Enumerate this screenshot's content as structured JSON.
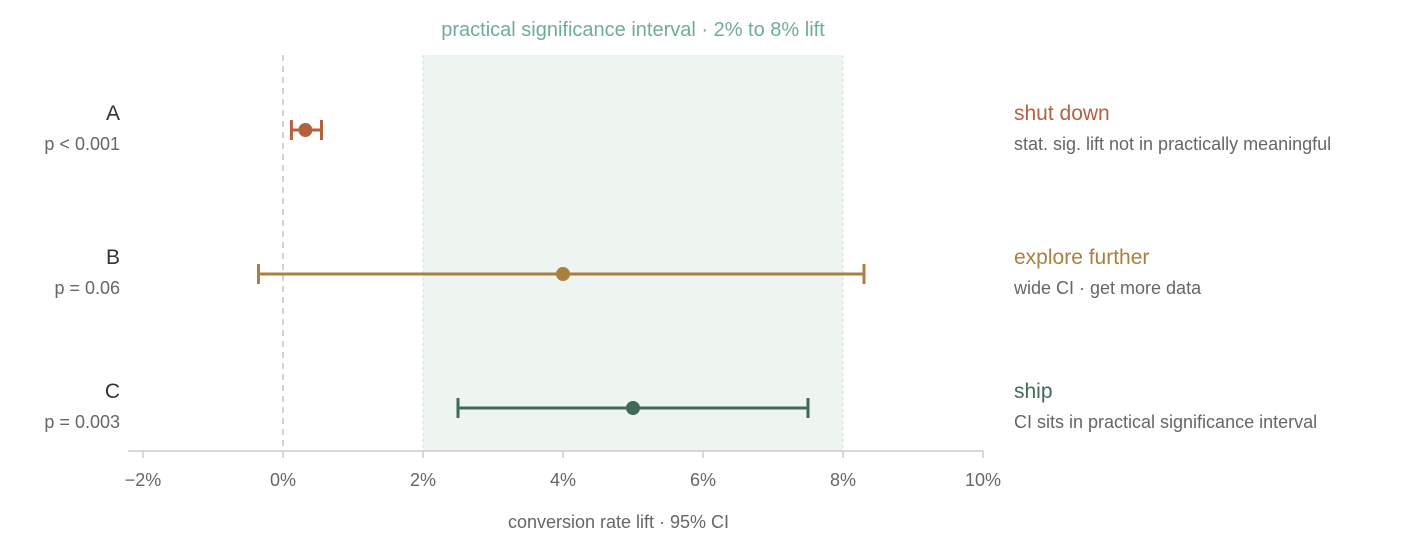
{
  "chart_data": {
    "type": "forest",
    "band_title": "practical significance interval · 2% to 8% lift",
    "band": [
      2,
      8
    ],
    "xlabel": "conversion rate lift · 95% CI",
    "xlim": [
      -2,
      10
    ],
    "ticks": [
      {
        "value": -2,
        "label": "−2%"
      },
      {
        "value": 0,
        "label": "0%"
      },
      {
        "value": 2,
        "label": "2%"
      },
      {
        "value": 4,
        "label": "4%"
      },
      {
        "value": 6,
        "label": "6%"
      },
      {
        "value": 8,
        "label": "8%"
      },
      {
        "value": 10,
        "label": "10%"
      }
    ],
    "zero_line": 0,
    "series": [
      {
        "name": "A",
        "p": "p < 0.001",
        "estimate": 0.32,
        "lower": 0.12,
        "upper": 0.55,
        "decision": "shut down",
        "note": "stat. sig. lift not in practically meaningful",
        "color": "#b5603f"
      },
      {
        "name": "B",
        "p": "p = 0.06",
        "estimate": 4.0,
        "lower": -0.35,
        "upper": 8.3,
        "decision": "explore further",
        "note": "wide CI · get more data",
        "color": "#a9803f"
      },
      {
        "name": "C",
        "p": "p = 0.003",
        "estimate": 5.0,
        "lower": 2.5,
        "upper": 7.5,
        "decision": "ship",
        "note": "CI sits in practical significance interval",
        "color": "#3f6b56"
      }
    ],
    "colors": {
      "band_fill": "#eef5f1",
      "band_text": "#6fae92",
      "axis": "#cccccc"
    }
  }
}
